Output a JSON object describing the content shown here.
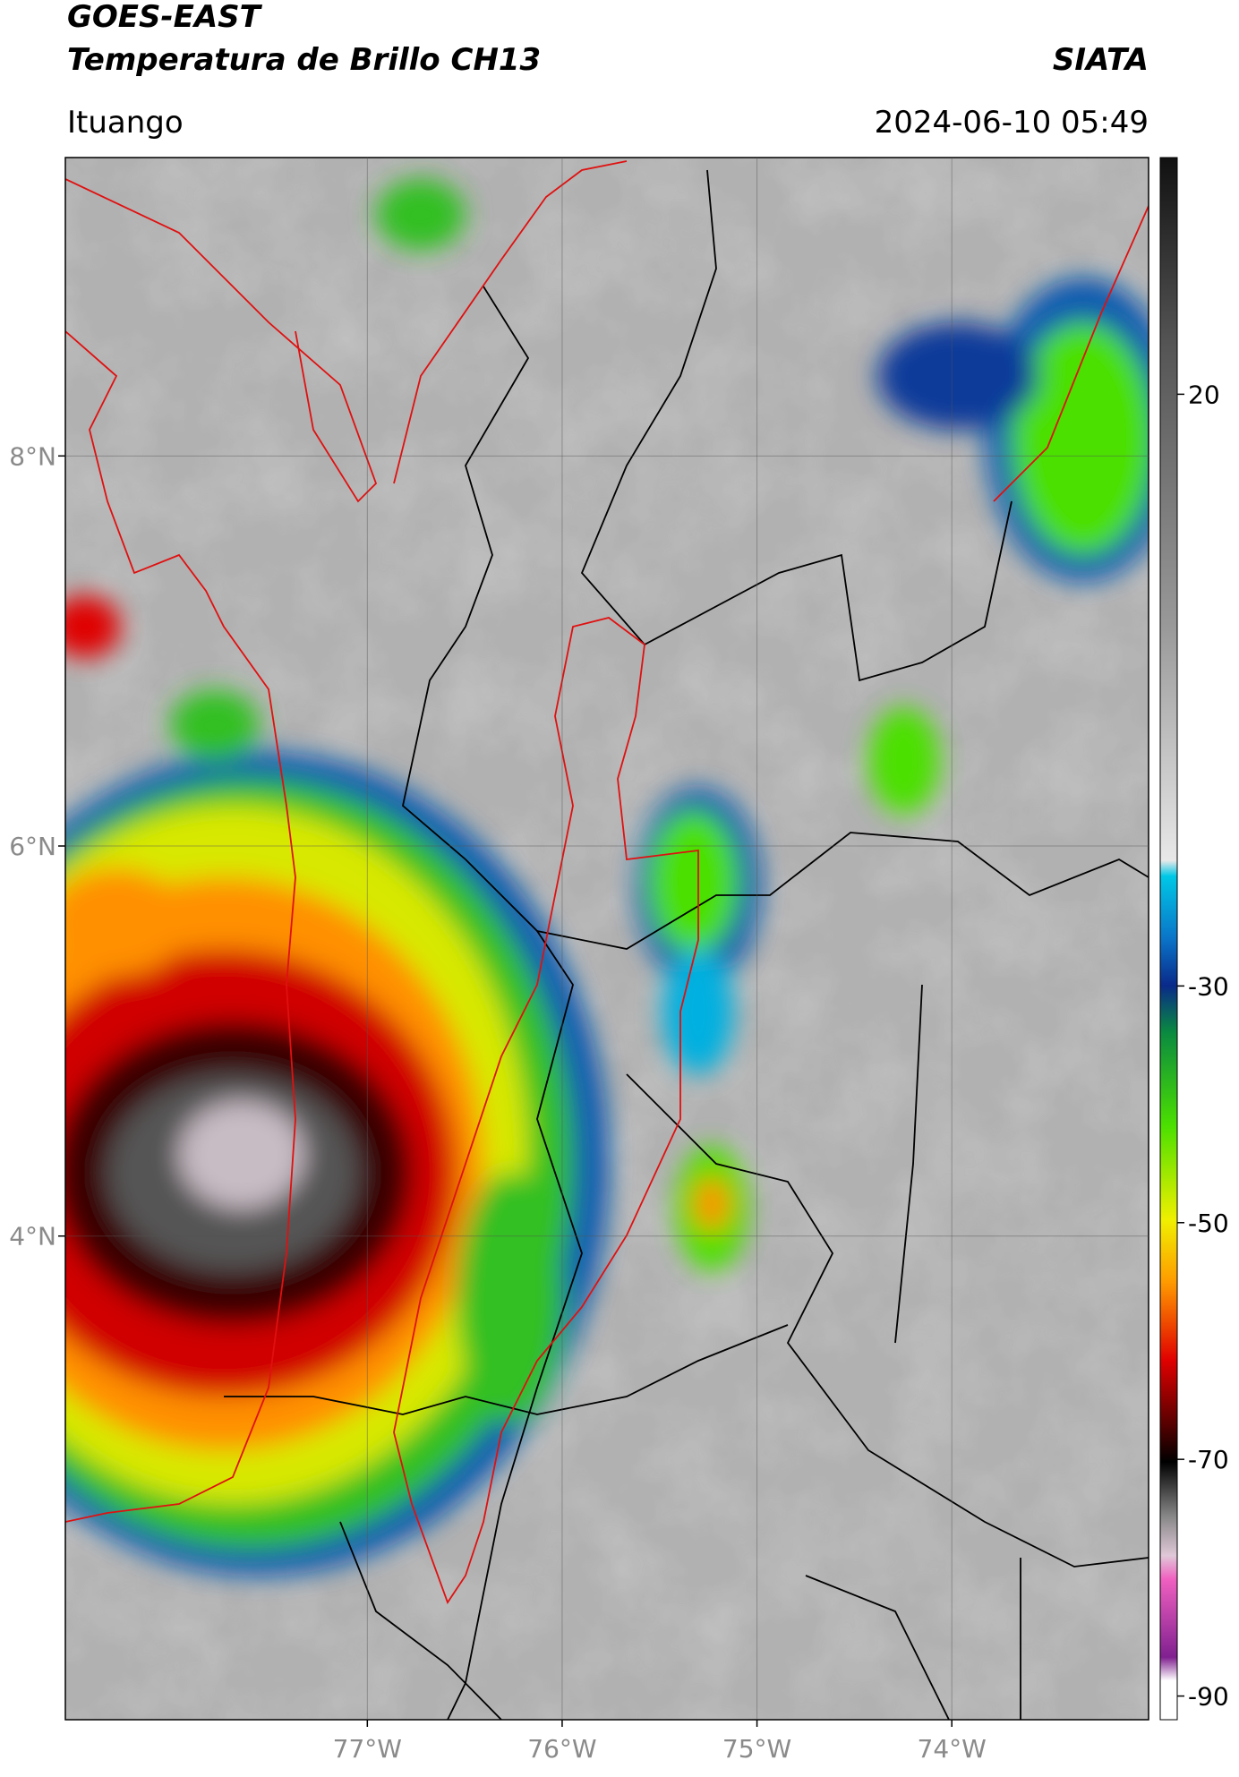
{
  "header": {
    "line1": "GOES-EAST",
    "line2": "Temperatura de Brillo CH13",
    "org": "SIATA",
    "location": "Ituango",
    "datetime": "2024-06-10 05:49"
  },
  "map": {
    "xlim": [
      -78.55,
      -72.99
    ],
    "ylim": [
      1.52,
      9.53
    ],
    "xticks": [
      {
        "value": -77,
        "label": "77°W"
      },
      {
        "value": -76,
        "label": "76°W"
      },
      {
        "value": -75,
        "label": "75°W"
      },
      {
        "value": -74,
        "label": "74°W"
      }
    ],
    "yticks": [
      {
        "value": 8,
        "label": "8°N"
      },
      {
        "value": 6,
        "label": "6°N"
      },
      {
        "value": 4,
        "label": "4°N"
      }
    ]
  },
  "colorbar": {
    "lim": [
      -92,
      40
    ],
    "ticks": [
      20,
      -30,
      -50,
      -70,
      -90
    ]
  }
}
